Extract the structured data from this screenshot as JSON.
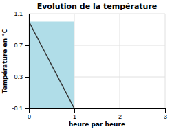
{
  "chart_data": {
    "type": "area",
    "title": "Evolution de la température",
    "xlabel": "heure par heure",
    "ylabel": "Température en °C",
    "series": [
      {
        "type": "area",
        "color": "#b0dde8",
        "x": [
          0,
          0,
          1,
          1
        ],
        "values": [
          1.0,
          -0.1,
          -0.1,
          1.0
        ]
      },
      {
        "type": "line",
        "color": "#333333",
        "x": [
          0,
          1
        ],
        "values": [
          1.0,
          -0.1
        ]
      }
    ],
    "xlim": [
      0,
      3
    ],
    "ylim": [
      -0.1,
      1.1
    ],
    "xticks": [
      0,
      1,
      2,
      3
    ],
    "yticks": [
      -0.1,
      0.3,
      0.7,
      1.1
    ],
    "grid": true
  }
}
